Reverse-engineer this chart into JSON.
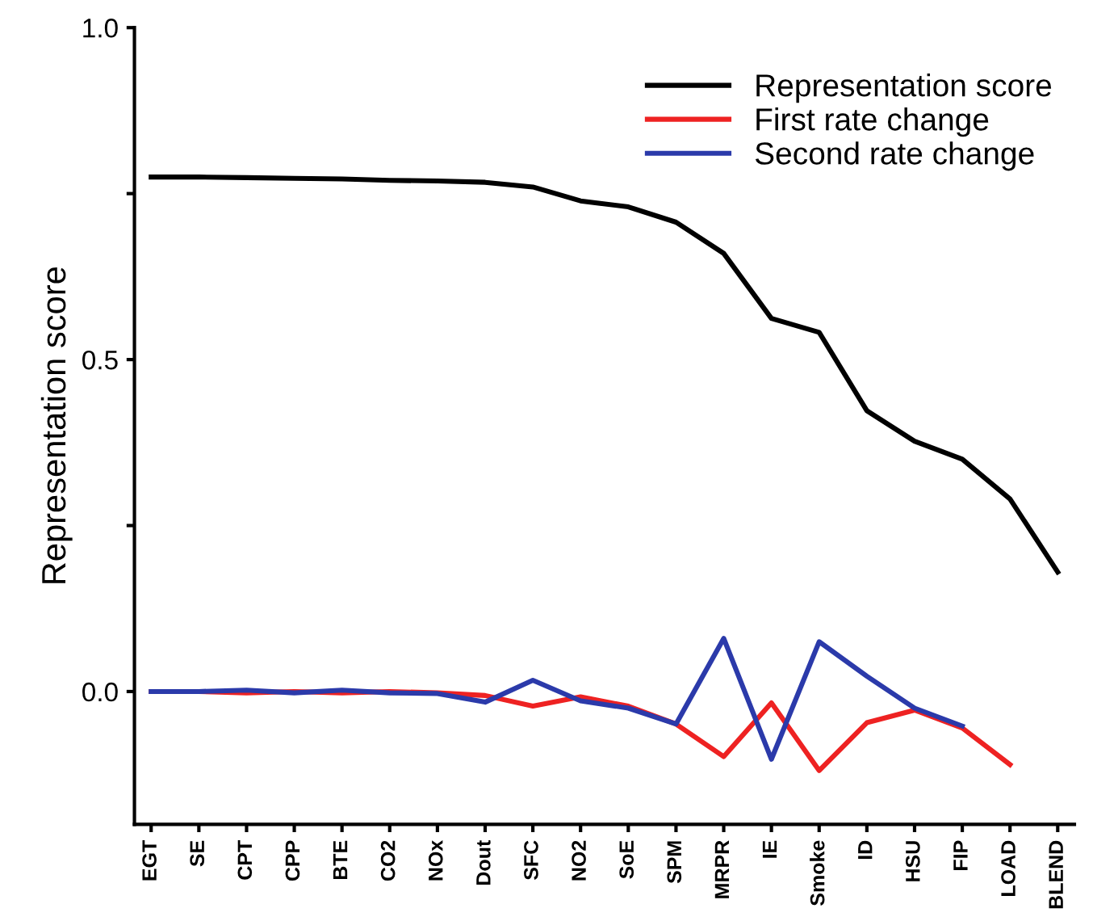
{
  "chart_data": {
    "type": "line",
    "ylabel": "Representation score",
    "categories": [
      "EGT",
      "SE",
      "CPT",
      "CPP",
      "BTE",
      "CO2",
      "NOx",
      "Dout",
      "SFC",
      "NO2",
      "SoE",
      "SPM",
      "MRPR",
      "IE",
      "Smoke",
      "ID",
      "HSU",
      "FIP",
      "LOAD",
      "BLEND"
    ],
    "series": [
      {
        "name": "Representation score",
        "color": "#000000",
        "values": [
          0.775,
          0.775,
          0.774,
          0.773,
          0.772,
          0.77,
          0.769,
          0.767,
          0.76,
          0.739,
          0.73,
          0.707,
          0.66,
          0.562,
          0.541,
          0.423,
          0.377,
          0.35,
          0.29,
          0.18
        ]
      },
      {
        "name": "First rate change",
        "color": "#ee2222",
        "values": [
          0,
          0,
          -0.002,
          0,
          -0.002,
          0,
          -0.002,
          -0.006,
          -0.022,
          -0.008,
          -0.022,
          -0.049,
          -0.098,
          -0.017,
          -0.119,
          -0.047,
          -0.028,
          -0.055,
          -0.11,
          null
        ]
      },
      {
        "name": "Second rate change",
        "color": "#2b3aaa",
        "values": [
          0,
          0,
          0.002,
          -0.002,
          0.002,
          -0.002,
          -0.003,
          -0.016,
          0.017,
          -0.014,
          -0.025,
          -0.049,
          0.08,
          -0.102,
          0.075,
          0.023,
          -0.025,
          -0.052,
          null,
          null
        ]
      }
    ],
    "ylim": [
      -0.2,
      1.0
    ],
    "yticks": [
      {
        "value": 0,
        "label": "0.0"
      },
      {
        "value": 0.25,
        "label": null
      },
      {
        "value": 0.5,
        "label": "0.5"
      },
      {
        "value": 0.75,
        "label": null
      },
      {
        "value": 1.0,
        "label": "1.0"
      }
    ],
    "legend": "top right",
    "grid": false,
    "marker": "none",
    "line_style": "solid"
  }
}
